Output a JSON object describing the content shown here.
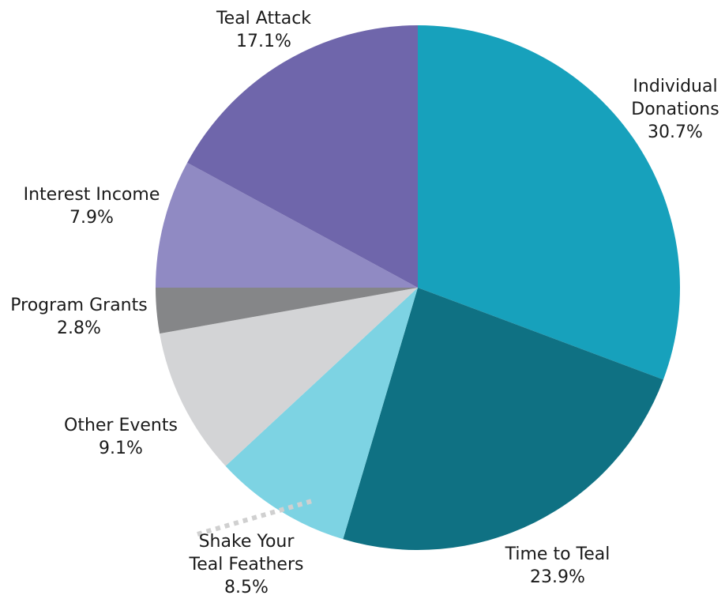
{
  "chart_data": {
    "type": "pie",
    "title": "",
    "start_angle_deg": 0,
    "direction": "clockwise",
    "slices": [
      {
        "label": "Individual Donations",
        "label_lines": [
          "Individual",
          "Donations"
        ],
        "value": 30.7,
        "value_label": "30.7%",
        "color": "#17A1BC"
      },
      {
        "label": "Time to Teal",
        "label_lines": [
          "Time to Teal"
        ],
        "value": 23.9,
        "value_label": "23.9%",
        "color": "#0F7183"
      },
      {
        "label": "Shake Your Teal Feathers",
        "label_lines": [
          "Shake Your",
          "Teal Feathers"
        ],
        "value": 8.5,
        "value_label": "8.5%",
        "color": "#7DD3E3"
      },
      {
        "label": "Other Events",
        "label_lines": [
          "Other Events"
        ],
        "value": 9.1,
        "value_label": "9.1%",
        "color": "#D3D4D6"
      },
      {
        "label": "Program Grants",
        "label_lines": [
          "Program Grants"
        ],
        "value": 2.8,
        "value_label": "2.8%",
        "color": "#858688"
      },
      {
        "label": "Interest Income",
        "label_lines": [
          "Interest Income"
        ],
        "value": 7.9,
        "value_label": "7.9%",
        "color": "#908AC3"
      },
      {
        "label": "Teal Attack",
        "label_lines": [
          "Teal Attack"
        ],
        "value": 17.1,
        "value_label": "17.1%",
        "color": "#6F66AB"
      }
    ]
  }
}
